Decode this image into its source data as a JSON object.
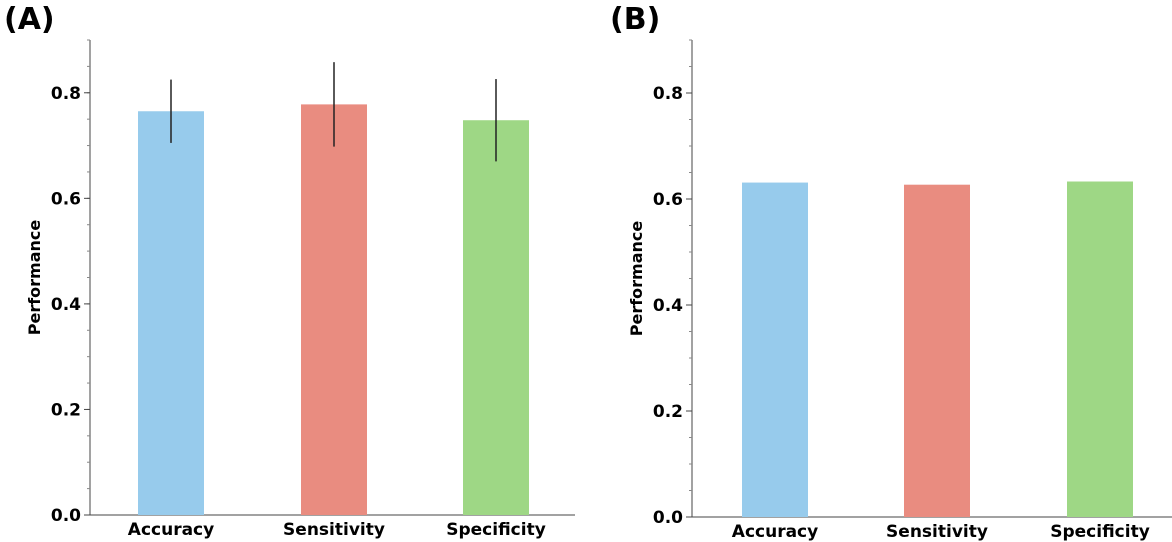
{
  "chart_data": [
    {
      "panel_label": "(A)",
      "type": "bar",
      "categories": [
        "Accuracy",
        "Sensitivity",
        "Specificity"
      ],
      "values": [
        0.765,
        0.778,
        0.748
      ],
      "error": [
        0.06,
        0.08,
        0.078
      ],
      "colors": [
        "#97cbec",
        "#e98c80",
        "#9ed785"
      ],
      "ylabel": "Performance",
      "xlabel": "",
      "ylim": [
        0,
        0.9
      ],
      "yticks": [
        "0.0",
        "0.2",
        "0.4",
        "0.6",
        "0.8"
      ],
      "grid": false
    },
    {
      "panel_label": "(B)",
      "type": "bar",
      "categories": [
        "Accuracy",
        "Sensitivity",
        "Specificity"
      ],
      "values": [
        0.631,
        0.627,
        0.633
      ],
      "colors": [
        "#97cbec",
        "#e98c80",
        "#9ed785"
      ],
      "ylabel": "Performance",
      "xlabel": "",
      "ylim": [
        0,
        0.9
      ],
      "yticks": [
        "0.0",
        "0.2",
        "0.4",
        "0.6",
        "0.8"
      ],
      "grid": false
    }
  ]
}
